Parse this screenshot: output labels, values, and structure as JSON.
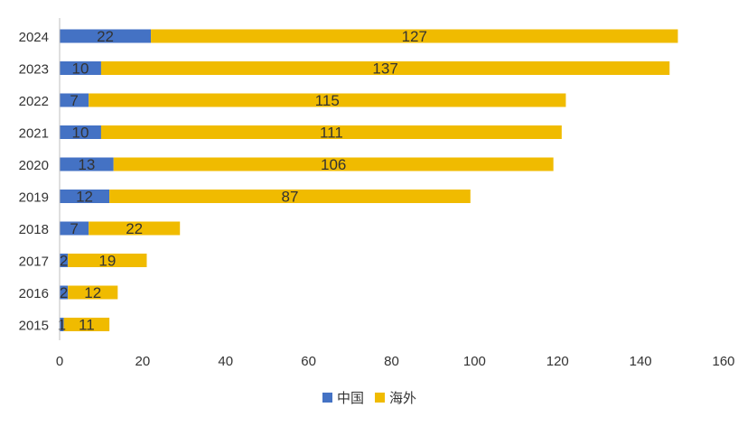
{
  "chart_data": {
    "type": "bar",
    "orientation": "horizontal",
    "stacked": true,
    "categories": [
      "2024",
      "2023",
      "2022",
      "2021",
      "2020",
      "2019",
      "2018",
      "2017",
      "2016",
      "2015"
    ],
    "series": [
      {
        "name": "中国",
        "color": "#4472C4",
        "values": [
          22,
          10,
          7,
          10,
          13,
          12,
          7,
          2,
          2,
          1
        ]
      },
      {
        "name": "海外",
        "color": "#F0BB00",
        "values": [
          127,
          137,
          115,
          111,
          106,
          87,
          22,
          19,
          12,
          11
        ]
      }
    ],
    "xlim": [
      0,
      160
    ],
    "xticks": [
      0,
      20,
      40,
      60,
      80,
      100,
      120,
      140,
      160
    ],
    "data_labels": true,
    "legend_position": "bottom",
    "grid": false
  }
}
